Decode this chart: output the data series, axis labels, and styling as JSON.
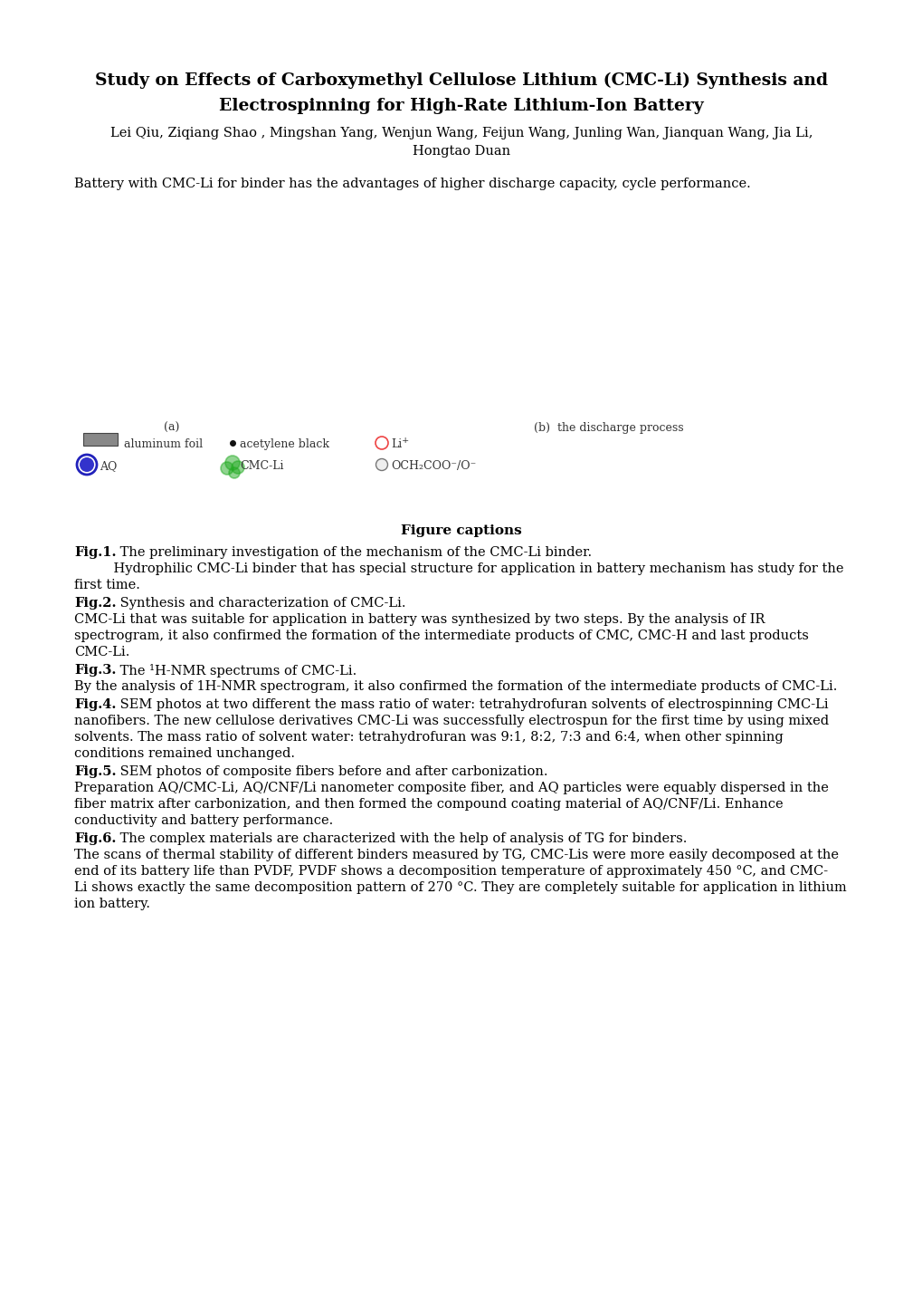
{
  "title_line1": "Study on Effects of Carboxymethyl Cellulose Lithium (CMC-Li) Synthesis and",
  "title_line2": "Electrospinning for High-Rate Lithium-Ion Battery",
  "authors": "Lei Qiu, Ziqiang Shao , Mingshan Yang, Wenjun Wang, Feijun Wang, Junling Wan, Jianquan Wang, Jia Li,",
  "authors2": "Hongtao Duan",
  "abstract": "Battery with CMC-Li for binder has the advantages of higher discharge capacity, cycle performance.",
  "figure_captions_title": "Figure captions",
  "fig1_bold": "Fig.1.",
  "fig1_text": " The preliminary investigation of the mechanism of the CMC-Li binder.",
  "fig1_body_line1": "    Hydrophilic CMC-Li binder that has special structure for application in battery mechanism has study for the",
  "fig1_body_line2": "first time.",
  "fig2_bold": "Fig.2.",
  "fig2_text": " Synthesis and characterization of CMC-Li.",
  "fig2_body_line1": "CMC-Li that was suitable for application in battery was synthesized by two steps. By the analysis of IR",
  "fig2_body_line2": "spectrogram, it also confirmed the formation of the intermediate products of CMC, CMC-H and last products",
  "fig2_body_line3": "CMC-Li.",
  "fig3_bold": "Fig.3.",
  "fig3_text": " The ¹H-NMR spectrums of CMC-Li.",
  "fig3_body": "By the analysis of 1H-NMR spectrogram, it also confirmed the formation of the intermediate products of CMC-Li.",
  "fig4_bold": "Fig.4.",
  "fig4_text_part1": " SEM photos at two different the mass ratio of water: tetrahydrofuran solvents of electrospinning CMC-Li",
  "fig4_body_line2": "nanofibers. The new cellulose derivatives CMC-Li was successfully electrospun for the first time by using mixed",
  "fig4_body_line3": "solvents. The mass ratio of solvent water: tetrahydrofuran was 9:1, 8:2, 7:3 and 6:4, when other spinning",
  "fig4_body_line4": "conditions remained unchanged.",
  "fig5_bold": "Fig.5.",
  "fig5_text": " SEM photos of composite fibers before and after carbonization.",
  "fig5_body_line1": "Preparation AQ/CMC-Li, AQ/CNF/Li nanometer composite fiber, and AQ particles were equably dispersed in the",
  "fig5_body_line2": "fiber matrix after carbonization, and then formed the compound coating material of AQ/CNF/Li. Enhance",
  "fig5_body_line3": "conductivity and battery performance.",
  "fig6_bold": "Fig.6.",
  "fig6_text": " The complex materials are characterized with the help of analysis of TG for binders.",
  "fig6_body_line1": "The scans of thermal stability of different binders measured by TG, CMC-Lis were more easily decomposed at the",
  "fig6_body_line2": "end of its battery life than PVDF, PVDF shows a decomposition temperature of approximately 450 °C, and CMC-",
  "fig6_body_line3": "Li shows exactly the same decomposition pattern of 270 °C. They are completely suitable for application in lithium",
  "fig6_body_line4": "ion battery.",
  "bg_color": "#ffffff",
  "text_color": "#000000"
}
